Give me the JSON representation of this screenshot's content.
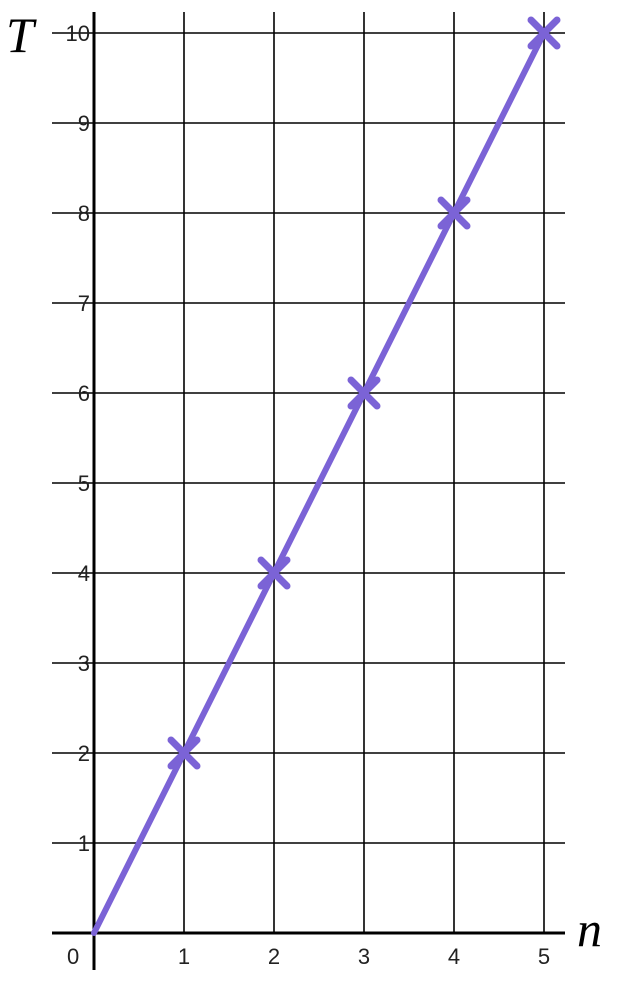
{
  "chart_data": {
    "type": "line",
    "xlabel": "n",
    "ylabel": "T",
    "origin_label": "0",
    "xlim": [
      0,
      5
    ],
    "ylim": [
      0,
      10
    ],
    "x_ticks": [
      1,
      2,
      3,
      4,
      5
    ],
    "y_ticks": [
      1,
      2,
      3,
      4,
      5,
      6,
      7,
      8,
      9,
      10
    ],
    "grid": true,
    "series": [
      {
        "line": {
          "x": [
            0,
            5
          ],
          "y": [
            0,
            10
          ]
        },
        "markers": {
          "x": [
            1,
            2,
            3,
            4,
            5
          ],
          "y": [
            2,
            4,
            6,
            8,
            10
          ]
        }
      }
    ],
    "colors": {
      "series": "#7b63d6",
      "grid": "#000000"
    }
  }
}
